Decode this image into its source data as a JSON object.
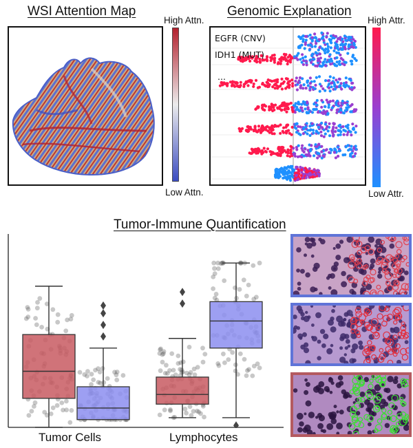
{
  "wsi": {
    "title": "WSI Attention Map",
    "high_label": "High Attn.",
    "low_label": "Low Attn.",
    "colors": {
      "high": "#b2202d",
      "mid": "#eaeaea",
      "low": "#3b4cc0"
    }
  },
  "genomic": {
    "title": "Genomic Explanation",
    "high_label": "High Attr.",
    "low_label": "Low Attr.",
    "rows": [
      {
        "label": "EGFR (CNV)"
      },
      {
        "label": "IDH1 (MUT)"
      },
      {
        "label": "..."
      },
      {
        "label": ""
      },
      {
        "label": ""
      },
      {
        "label": ""
      },
      {
        "label": ""
      }
    ],
    "colors": {
      "high": "#ff1a4d",
      "low": "#1e90ff"
    }
  },
  "quant": {
    "title": "Tumor-Immune Quantification",
    "x_labels": [
      "Tumor Cells",
      "Lymphocytes"
    ],
    "colors": {
      "red": "#c85a62",
      "blue": "#8c8ef0",
      "red_border": "#b45a60",
      "blue_border": "#5f74d8"
    }
  },
  "chart_data": {
    "type": "box",
    "categories": [
      "Tumor Cells",
      "Lymphocytes"
    ],
    "series": [
      {
        "color": "red",
        "boxes": [
          {
            "whisker_low": 0.0,
            "q1": 0.15,
            "median": 0.29,
            "q3": 0.48,
            "whisker_high": 0.73,
            "outliers": []
          },
          {
            "whisker_low": 0.05,
            "q1": 0.12,
            "median": 0.17,
            "q3": 0.26,
            "whisker_high": 0.46,
            "outliers": [
              0.7,
              0.64
            ]
          }
        ]
      },
      {
        "color": "blue",
        "boxes": [
          {
            "whisker_low": 0.04,
            "q1": 0.04,
            "median": 0.1,
            "q3": 0.21,
            "whisker_high": 0.41,
            "outliers": [
              0.63,
              0.59,
              0.53,
              0.47
            ]
          },
          {
            "whisker_low": 0.05,
            "q1": 0.41,
            "median": 0.55,
            "q3": 0.65,
            "whisker_high": 0.85,
            "outliers": [
              0.01
            ]
          }
        ]
      }
    ],
    "ylim": [
      0,
      1
    ]
  }
}
